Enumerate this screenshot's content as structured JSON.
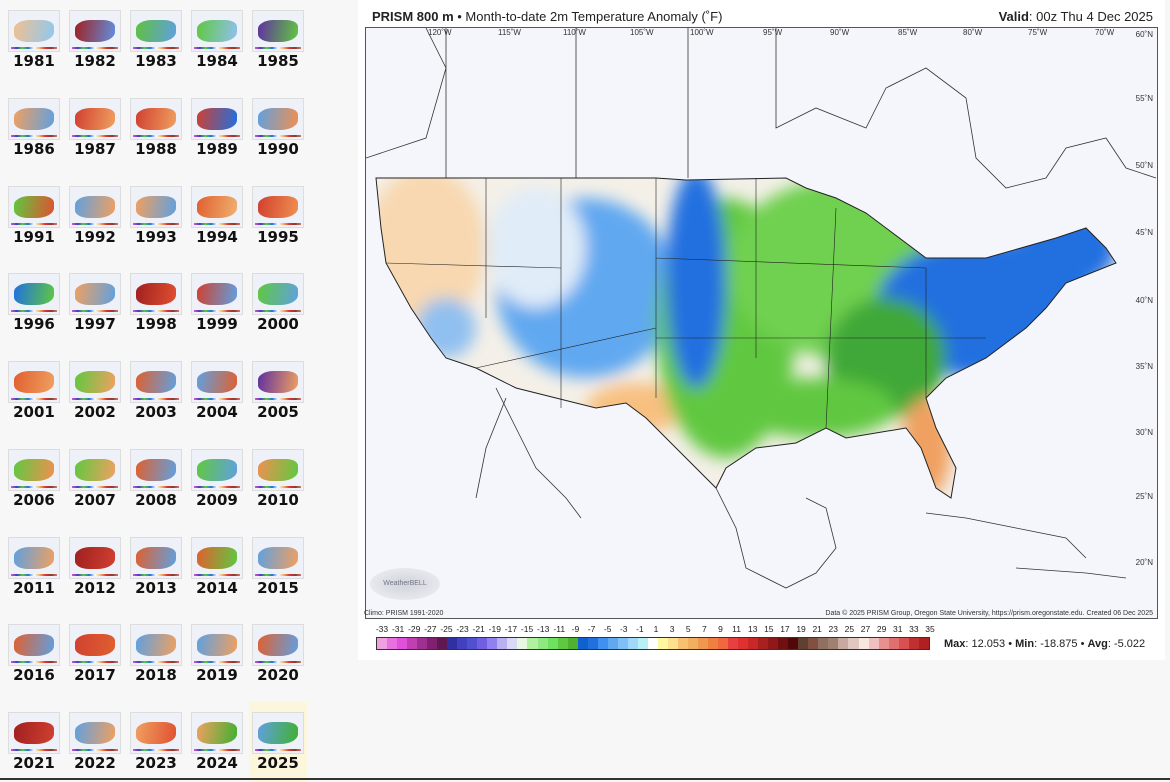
{
  "thumbnails": [
    {
      "year": "1981",
      "c1": "#f0c090",
      "c2": "#90c8f0"
    },
    {
      "year": "1982",
      "c1": "#a02020",
      "c2": "#6090e0"
    },
    {
      "year": "1983",
      "c1": "#60c040",
      "c2": "#60a0e0"
    },
    {
      "year": "1984",
      "c1": "#60c840",
      "c2": "#90c0f0"
    },
    {
      "year": "1985",
      "c1": "#6030a0",
      "c2": "#60c840"
    },
    {
      "year": "1986",
      "c1": "#f0a060",
      "c2": "#60a0e0"
    },
    {
      "year": "1987",
      "c1": "#d04030",
      "c2": "#f0a060"
    },
    {
      "year": "1988",
      "c1": "#d04030",
      "c2": "#f0a060"
    },
    {
      "year": "1989",
      "c1": "#d04030",
      "c2": "#2070e0"
    },
    {
      "year": "1990",
      "c1": "#60a0e0",
      "c2": "#f09050"
    },
    {
      "year": "1991",
      "c1": "#60c840",
      "c2": "#e05030"
    },
    {
      "year": "1992",
      "c1": "#60a0e0",
      "c2": "#f0a060"
    },
    {
      "year": "1993",
      "c1": "#f0a060",
      "c2": "#60a0e0"
    },
    {
      "year": "1994",
      "c1": "#e06030",
      "c2": "#f0b070"
    },
    {
      "year": "1995",
      "c1": "#d04030",
      "c2": "#f09050"
    },
    {
      "year": "1996",
      "c1": "#2070e0",
      "c2": "#60c840"
    },
    {
      "year": "1997",
      "c1": "#f0a060",
      "c2": "#60a0e0"
    },
    {
      "year": "1998",
      "c1": "#a02020",
      "c2": "#e05030"
    },
    {
      "year": "1999",
      "c1": "#d04030",
      "c2": "#60a0e0"
    },
    {
      "year": "2000",
      "c1": "#60c840",
      "c2": "#60a0e0"
    },
    {
      "year": "2001",
      "c1": "#e06030",
      "c2": "#f0a060"
    },
    {
      "year": "2002",
      "c1": "#60c840",
      "c2": "#f0a060"
    },
    {
      "year": "2003",
      "c1": "#e06030",
      "c2": "#60a0e0"
    },
    {
      "year": "2004",
      "c1": "#60a0e0",
      "c2": "#e06030"
    },
    {
      "year": "2005",
      "c1": "#6030a0",
      "c2": "#f0a060"
    },
    {
      "year": "2006",
      "c1": "#60c840",
      "c2": "#f09050"
    },
    {
      "year": "2007",
      "c1": "#60c840",
      "c2": "#f0a060"
    },
    {
      "year": "2008",
      "c1": "#e06030",
      "c2": "#60a0e0"
    },
    {
      "year": "2009",
      "c1": "#60c840",
      "c2": "#60a0e0"
    },
    {
      "year": "2010",
      "c1": "#f09050",
      "c2": "#60c840"
    },
    {
      "year": "2011",
      "c1": "#60a0e0",
      "c2": "#f0a060"
    },
    {
      "year": "2012",
      "c1": "#a02020",
      "c2": "#d04030"
    },
    {
      "year": "2013",
      "c1": "#e06030",
      "c2": "#60a0e0"
    },
    {
      "year": "2014",
      "c1": "#e06030",
      "c2": "#60c840"
    },
    {
      "year": "2015",
      "c1": "#60a0e0",
      "c2": "#f0a060"
    },
    {
      "year": "2016",
      "c1": "#e06030",
      "c2": "#60a0e0"
    },
    {
      "year": "2017",
      "c1": "#d04030",
      "c2": "#e06030"
    },
    {
      "year": "2018",
      "c1": "#60a0e0",
      "c2": "#f0a060"
    },
    {
      "year": "2019",
      "c1": "#60a0e0",
      "c2": "#f0a060"
    },
    {
      "year": "2020",
      "c1": "#e06030",
      "c2": "#60a0e0"
    },
    {
      "year": "2021",
      "c1": "#a02020",
      "c2": "#d04030"
    },
    {
      "year": "2022",
      "c1": "#60a0e0",
      "c2": "#f0a060"
    },
    {
      "year": "2023",
      "c1": "#f0a060",
      "c2": "#e05030"
    },
    {
      "year": "2024",
      "c1": "#f0a060",
      "c2": "#40b030"
    },
    {
      "year": "2025",
      "c1": "#60a0e0",
      "c2": "#40b030",
      "selected": true
    }
  ],
  "header": {
    "title_bold": "PRISM 800 m",
    "title_rest": " • Month-to-date 2m Temperature Anomaly (˚F)",
    "valid_label": "Valid",
    "valid_value": ": 00z Thu 4 Dec 2025"
  },
  "map": {
    "lon_labels": [
      "120˚W",
      "115˚W",
      "110˚W",
      "105˚W",
      "100˚W",
      "95˚W",
      "90˚W",
      "85˚W",
      "80˚W",
      "75˚W",
      "70˚W"
    ],
    "lat_labels": [
      "60˚N",
      "55˚N",
      "50˚N",
      "45˚N",
      "40˚N",
      "35˚N",
      "30˚N",
      "25˚N",
      "20˚N"
    ],
    "climo": "Climo: PRISM 1991-2020",
    "credit": "Data © 2025 PRISM Group, Oregon State University, https://prism.oregonstate.edu. Created 06 Dec 2025",
    "logo": "WeatherBELL"
  },
  "colorbar": {
    "ticks": [
      "-33",
      "-31",
      "-29",
      "-27",
      "-25",
      "-23",
      "-21",
      "-19",
      "-17",
      "-15",
      "-13",
      "-11",
      "-9",
      "-7",
      "-5",
      "-3",
      "-1",
      "1",
      "3",
      "5",
      "7",
      "9",
      "11",
      "13",
      "15",
      "17",
      "19",
      "21",
      "23",
      "25",
      "27",
      "29",
      "31",
      "33",
      "35"
    ],
    "colors": [
      "#f0a0e0",
      "#e870e0",
      "#e050d8",
      "#c040b0",
      "#a03090",
      "#802070",
      "#601850",
      "#3030a0",
      "#4040c0",
      "#5050d0",
      "#7060e0",
      "#9080f0",
      "#b8b0f0",
      "#d8d8f8",
      "#e8f8e0",
      "#b0f0a0",
      "#90e880",
      "#70e060",
      "#60c840",
      "#50b030",
      "#1060d0",
      "#2070e0",
      "#4090f0",
      "#60a8f0",
      "#80c0f8",
      "#a0d8f8",
      "#b8f0f8",
      "#ffffff",
      "#fff8a0",
      "#ffe090",
      "#f8c070",
      "#f0b060",
      "#f09850",
      "#f08040",
      "#f06840",
      "#e84040",
      "#e03030",
      "#c82828",
      "#a82020",
      "#901818",
      "#701010",
      "#500808",
      "#604030",
      "#805040",
      "#907060",
      "#a08070",
      "#c8a8a0",
      "#e0c8c0",
      "#f8e8e0",
      "#f0c0c0",
      "#e89090",
      "#e07070",
      "#d85050",
      "#c03030",
      "#b02020"
    ]
  },
  "stats": {
    "max_label": "Max",
    "max": ": 12.053 • ",
    "min_label": "Min",
    "min": ": -18.875 • ",
    "avg_label": "Avg",
    "avg": ": -5.022"
  }
}
